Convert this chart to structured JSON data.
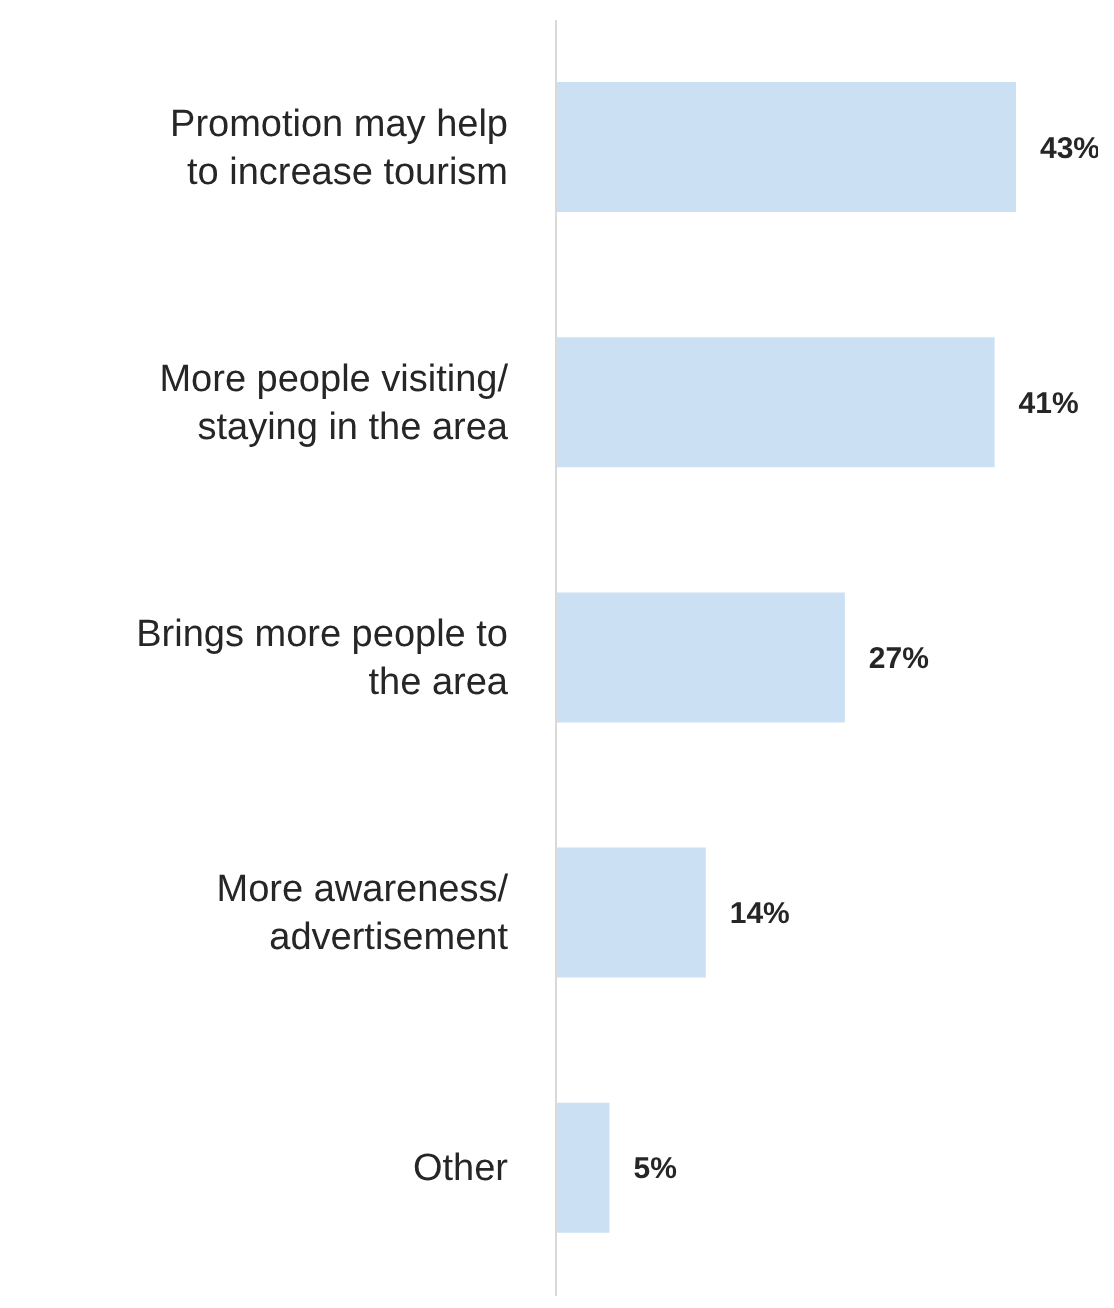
{
  "chart_data": {
    "type": "bar",
    "orientation": "horizontal",
    "categories": [
      "Promotion may help\nto increase tourism",
      "More people visiting/\nstaying in the area",
      "Brings more people to\nthe area",
      "More awareness/\nadvertisement",
      "Other"
    ],
    "values": [
      43,
      41,
      27,
      14,
      5
    ],
    "value_labels": [
      "43%",
      "41%",
      "27%",
      "14%",
      "5%"
    ],
    "color": "#cce0f3"
  }
}
